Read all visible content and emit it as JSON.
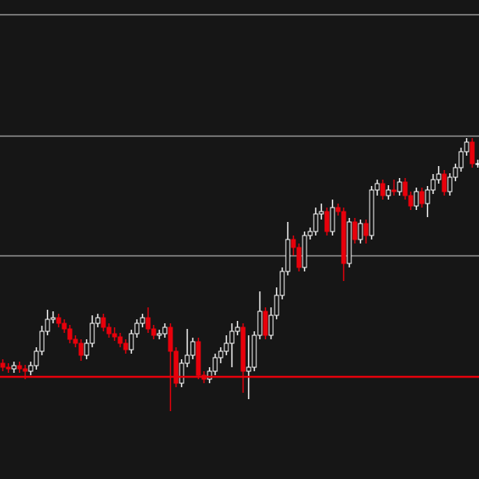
{
  "chart_data": {
    "type": "candlestick",
    "up_color": "#ffffff",
    "down_color": "#e8000b",
    "background": "#161616",
    "ylim": [
      0,
      600
    ],
    "yticks": [
      280,
      430,
      582
    ],
    "grid": true,
    "grid_color": "#9a9a9a",
    "hline": 128,
    "hline_color": "#e8000b",
    "open": [
      145,
      140,
      138,
      142,
      138,
      135,
      142,
      160,
      185,
      200,
      202,
      195,
      188,
      175,
      170,
      155,
      170,
      195,
      202,
      190,
      182,
      178,
      170,
      162,
      182,
      195,
      202,
      188,
      180,
      182,
      190,
      160,
      120,
      145,
      155,
      172,
      130,
      125,
      135,
      152,
      160,
      170,
      185,
      190,
      135,
      140,
      180,
      210,
      180,
      205,
      230,
      260,
      300,
      290,
      265,
      305,
      310,
      332,
      335,
      310,
      340,
      335,
      270,
      322,
      300,
      320,
      305,
      362,
      370,
      355,
      362,
      360,
      372,
      355,
      342,
      360,
      345,
      362,
      375,
      382,
      360,
      378,
      390,
      410,
      422,
      395
    ],
    "high": [
      150,
      145,
      147,
      147,
      143,
      147,
      165,
      192,
      212,
      210,
      207,
      200,
      193,
      180,
      175,
      175,
      205,
      207,
      207,
      195,
      190,
      183,
      175,
      187,
      200,
      207,
      215,
      193,
      187,
      195,
      195,
      165,
      150,
      188,
      177,
      177,
      135,
      140,
      157,
      165,
      180,
      195,
      198,
      195,
      180,
      185,
      235,
      215,
      215,
      240,
      265,
      322,
      305,
      295,
      310,
      315,
      340,
      345,
      340,
      350,
      345,
      340,
      327,
      327,
      325,
      325,
      367,
      375,
      375,
      368,
      375,
      377,
      377,
      360,
      365,
      365,
      367,
      382,
      392,
      387,
      383,
      395,
      415,
      427,
      427,
      400
    ],
    "low": [
      135,
      133,
      133,
      133,
      125,
      130,
      137,
      155,
      180,
      195,
      190,
      183,
      170,
      165,
      148,
      150,
      165,
      190,
      185,
      177,
      173,
      165,
      157,
      157,
      177,
      190,
      183,
      175,
      175,
      177,
      85,
      115,
      115,
      140,
      150,
      125,
      120,
      120,
      130,
      145,
      155,
      140,
      180,
      108,
      100,
      135,
      175,
      175,
      175,
      200,
      225,
      255,
      280,
      260,
      260,
      300,
      305,
      325,
      305,
      305,
      330,
      248,
      265,
      295,
      295,
      295,
      300,
      355,
      350,
      350,
      355,
      355,
      350,
      337,
      337,
      340,
      328,
      357,
      370,
      355,
      355,
      373,
      385,
      405,
      390,
      390
    ],
    "close": [
      140,
      138,
      142,
      138,
      135,
      142,
      160,
      185,
      200,
      202,
      195,
      188,
      175,
      170,
      155,
      170,
      195,
      202,
      190,
      182,
      178,
      170,
      162,
      182,
      195,
      202,
      188,
      180,
      182,
      190,
      160,
      120,
      145,
      155,
      172,
      130,
      125,
      135,
      152,
      160,
      170,
      185,
      190,
      135,
      140,
      180,
      210,
      180,
      205,
      230,
      260,
      300,
      290,
      265,
      305,
      310,
      332,
      335,
      310,
      340,
      335,
      270,
      322,
      300,
      320,
      305,
      362,
      370,
      355,
      362,
      360,
      372,
      355,
      342,
      360,
      345,
      362,
      375,
      382,
      360,
      378,
      390,
      410,
      422,
      395,
      395
    ]
  }
}
